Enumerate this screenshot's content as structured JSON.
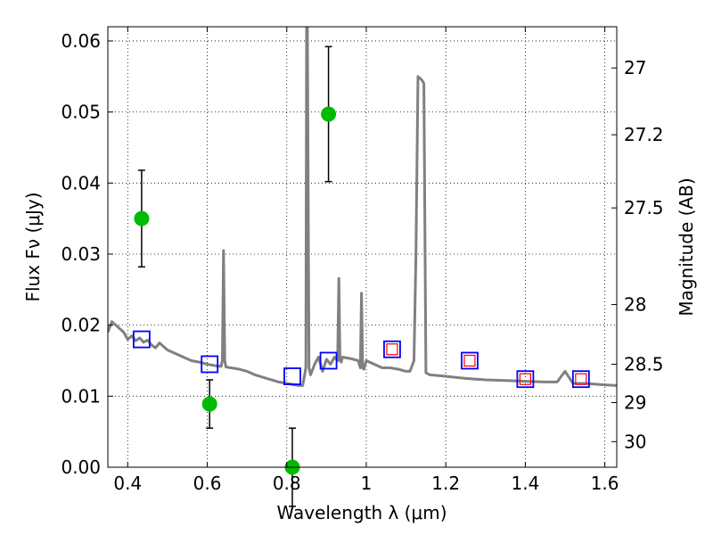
{
  "chart_data": {
    "type": "line",
    "xlabel": "Wavelength λ (μm)",
    "ylabel": "Flux Fν (μJy)",
    "ylabel_right": "Magnitude (AB)",
    "xlim": [
      0.35,
      1.63
    ],
    "ylim": [
      0.0,
      0.062
    ],
    "grid": true,
    "x_ticks": [
      0.4,
      0.6,
      0.8,
      1.0,
      1.2,
      1.4,
      1.6
    ],
    "x_tick_labels": [
      "0.4",
      "0.6",
      "0.8",
      "1",
      "1.2",
      "1.4",
      "1.6"
    ],
    "y_ticks": [
      0.0,
      0.01,
      0.02,
      0.03,
      0.04,
      0.05,
      0.06
    ],
    "y_tick_labels": [
      "0.00",
      "0.01",
      "0.02",
      "0.03",
      "0.04",
      "0.05",
      "0.06"
    ],
    "right_ticks": [
      {
        "flux": 0.0562,
        "label": "27"
      },
      {
        "flux": 0.0468,
        "label": "27.2"
      },
      {
        "flux": 0.0365,
        "label": "27.5"
      },
      {
        "flux": 0.0229,
        "label": "28"
      },
      {
        "flux": 0.0145,
        "label": "28.5"
      },
      {
        "flux": 0.0091,
        "label": "29"
      },
      {
        "flux": 0.0036,
        "label": "30"
      }
    ],
    "series": [
      {
        "kind": "sed_model",
        "color": "#808080",
        "x": [
          0.35,
          0.36,
          0.37,
          0.38,
          0.39,
          0.4,
          0.41,
          0.42,
          0.43,
          0.44,
          0.45,
          0.46,
          0.47,
          0.48,
          0.5,
          0.52,
          0.54,
          0.56,
          0.58,
          0.6,
          0.62,
          0.635,
          0.638,
          0.641,
          0.644,
          0.647,
          0.66,
          0.68,
          0.7,
          0.72,
          0.75,
          0.78,
          0.8,
          0.82,
          0.83,
          0.84,
          0.848,
          0.85,
          0.852,
          0.856,
          0.86,
          0.87,
          0.88,
          0.89,
          0.9,
          0.91,
          0.92,
          0.928,
          0.931,
          0.934,
          0.937,
          0.94,
          0.96,
          0.98,
          0.985,
          0.988,
          0.991,
          0.994,
          1.0,
          1.02,
          1.04,
          1.06,
          1.08,
          1.1,
          1.11,
          1.12,
          1.125,
          1.13,
          1.14,
          1.145,
          1.15,
          1.16,
          1.2,
          1.25,
          1.3,
          1.35,
          1.4,
          1.45,
          1.48,
          1.5,
          1.52,
          1.55,
          1.6,
          1.63
        ],
        "y": [
          0.019,
          0.0205,
          0.02,
          0.0195,
          0.019,
          0.018,
          0.0185,
          0.0178,
          0.0182,
          0.0176,
          0.0179,
          0.0172,
          0.0168,
          0.0175,
          0.0165,
          0.016,
          0.0155,
          0.015,
          0.0148,
          0.0145,
          0.0143,
          0.0142,
          0.015,
          0.0305,
          0.015,
          0.0141,
          0.014,
          0.0138,
          0.0135,
          0.013,
          0.0125,
          0.012,
          0.0118,
          0.0116,
          0.0115,
          0.0115,
          0.014,
          0.062,
          0.062,
          0.014,
          0.013,
          0.0145,
          0.0155,
          0.0135,
          0.0152,
          0.0145,
          0.0155,
          0.015,
          0.0266,
          0.015,
          0.0148,
          0.0155,
          0.0153,
          0.015,
          0.014,
          0.0245,
          0.014,
          0.0138,
          0.015,
          0.0145,
          0.014,
          0.014,
          0.0138,
          0.0135,
          0.0135,
          0.015,
          0.03,
          0.055,
          0.0545,
          0.054,
          0.0133,
          0.013,
          0.0128,
          0.0125,
          0.0123,
          0.0122,
          0.0121,
          0.012,
          0.012,
          0.0135,
          0.0118,
          0.0118,
          0.0116,
          0.0115
        ]
      },
      {
        "kind": "model_photometry",
        "marker": "square",
        "color": "#0000ff",
        "x": [
          0.435,
          0.606,
          0.814,
          0.905,
          1.065,
          1.26,
          1.4,
          1.54
        ],
        "y": [
          0.018,
          0.0145,
          0.0128,
          0.015,
          0.0166,
          0.015,
          0.0124,
          0.0124
        ]
      },
      {
        "kind": "model_photometry_inner",
        "marker": "square",
        "color": "#ff0000",
        "x": [
          1.065,
          1.26,
          1.4,
          1.54
        ],
        "y": [
          0.0166,
          0.015,
          0.0124,
          0.0124
        ]
      },
      {
        "kind": "observed_photometry",
        "marker": "circle",
        "color": "#00bb00",
        "x": [
          0.435,
          0.606,
          0.814,
          0.905
        ],
        "y": [
          0.035,
          0.0089,
          0.0,
          0.0497
        ],
        "err": [
          0.0068,
          0.0034,
          0.0055,
          0.0095
        ]
      }
    ]
  }
}
